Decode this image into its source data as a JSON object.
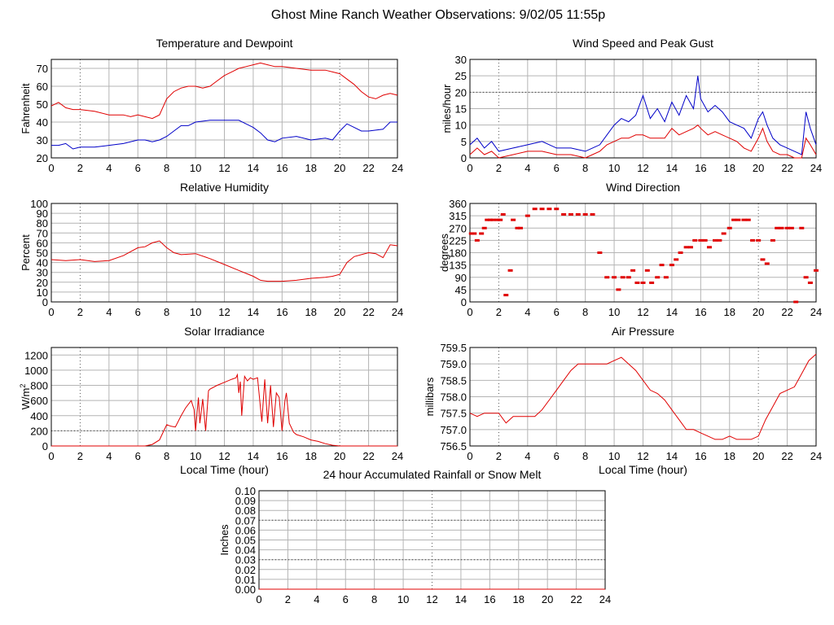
{
  "page": {
    "title": "Ghost Mine Ranch Weather Observations: 9/02/05 11:55p"
  },
  "colors": {
    "red": "#e00000",
    "blue": "#0000c8",
    "grid": "#b4b4b4",
    "axis": "#000000"
  },
  "chart_data": [
    {
      "id": "temp",
      "type": "line",
      "title": "Temperature and Dewpoint",
      "xlabel": "",
      "ylabel": "Fahrenheit",
      "xlim": [
        0,
        24
      ],
      "xticks": [
        0,
        2,
        4,
        6,
        8,
        10,
        12,
        14,
        16,
        18,
        20,
        22,
        24
      ],
      "ylim": [
        20,
        75
      ],
      "yticks": [
        20,
        30,
        40,
        50,
        60,
        70
      ],
      "series": [
        {
          "color": "red",
          "x": [
            0,
            0.5,
            1,
            1.5,
            2,
            3,
            4,
            5,
            5.5,
            6,
            6.5,
            7,
            7.5,
            8,
            8.5,
            9,
            9.5,
            10,
            10.5,
            11,
            11.5,
            12,
            12.5,
            13,
            13.5,
            14,
            14.5,
            15,
            15.5,
            16,
            17,
            18,
            19,
            19.5,
            20,
            20.5,
            21,
            21.5,
            22,
            22.5,
            23,
            23.5,
            24
          ],
          "y": [
            49,
            51,
            48,
            47,
            47,
            46,
            44,
            44,
            43,
            44,
            43,
            42,
            44,
            53,
            57,
            59,
            60,
            60,
            59,
            60,
            63,
            66,
            68,
            70,
            71,
            72,
            73,
            72,
            71,
            71,
            70,
            69,
            69,
            68,
            67,
            64,
            61,
            57,
            54,
            53,
            55,
            56,
            55
          ]
        },
        {
          "color": "blue",
          "x": [
            0,
            0.5,
            1,
            1.5,
            2,
            3,
            4,
            5,
            6,
            6.5,
            7,
            7.5,
            8,
            8.5,
            9,
            9.5,
            10,
            11,
            12,
            13,
            13.5,
            14,
            14.5,
            15,
            15.5,
            16,
            17,
            18,
            19,
            19.5,
            20,
            20.5,
            21,
            21.5,
            22,
            23,
            23.5,
            24
          ],
          "y": [
            27,
            27,
            28,
            25,
            26,
            26,
            27,
            28,
            30,
            30,
            29,
            30,
            32,
            35,
            38,
            38,
            40,
            41,
            41,
            41,
            39,
            37,
            34,
            30,
            29,
            31,
            32,
            30,
            31,
            30,
            35,
            39,
            37,
            35,
            35,
            36,
            40,
            40
          ]
        }
      ]
    },
    {
      "id": "wind",
      "type": "line",
      "title": "Wind Speed and Peak Gust",
      "xlabel": "",
      "ylabel": "miles/hour",
      "xlim": [
        0,
        24
      ],
      "xticks": [
        0,
        2,
        4,
        6,
        8,
        10,
        12,
        14,
        16,
        18,
        20,
        22,
        24
      ],
      "ylim": [
        0,
        30
      ],
      "yticks": [
        0,
        5,
        10,
        15,
        20,
        25,
        30
      ],
      "series": [
        {
          "color": "blue",
          "x": [
            0,
            0.5,
            1,
            1.5,
            2,
            3,
            4,
            5,
            6,
            7,
            8,
            8.5,
            9,
            9.5,
            10,
            10.5,
            11,
            11.5,
            12,
            12.5,
            13,
            13.5,
            14,
            14.5,
            15,
            15.5,
            15.8,
            16,
            16.5,
            17,
            17.5,
            18,
            18.5,
            19,
            19.5,
            20,
            20.3,
            20.6,
            21,
            21.5,
            22,
            22.5,
            23,
            23.3,
            23.6,
            24
          ],
          "y": [
            4,
            6,
            3,
            5,
            2,
            3,
            4,
            5,
            3,
            3,
            2,
            3,
            4,
            7,
            10,
            12,
            11,
            13,
            19,
            12,
            15,
            11,
            17,
            13,
            19,
            15,
            25,
            18,
            14,
            16,
            14,
            11,
            10,
            9,
            6,
            12,
            14,
            10,
            6,
            4,
            3,
            2,
            1,
            14,
            9,
            4
          ]
        },
        {
          "color": "red",
          "x": [
            0,
            0.5,
            1,
            1.5,
            2,
            3,
            4,
            5,
            6,
            7,
            8,
            8.5,
            9,
            9.5,
            10,
            10.5,
            11,
            11.5,
            12,
            12.5,
            13,
            13.5,
            14,
            14.5,
            15,
            15.5,
            15.8,
            16,
            16.5,
            17,
            17.5,
            18,
            18.5,
            19,
            19.5,
            20,
            20.3,
            20.6,
            21,
            21.5,
            22,
            22.5,
            23,
            23.3,
            23.6,
            24
          ],
          "y": [
            1,
            3,
            1,
            2,
            0,
            1,
            2,
            2,
            1,
            1,
            0,
            1,
            2,
            4,
            5,
            6,
            6,
            7,
            7,
            6,
            6,
            6,
            9,
            7,
            8,
            9,
            10,
            9,
            7,
            8,
            7,
            6,
            5,
            3,
            2,
            6,
            9,
            5,
            2,
            1,
            1,
            0,
            0,
            6,
            4,
            1
          ]
        }
      ]
    },
    {
      "id": "rh",
      "type": "line",
      "title": "Relative Humidity",
      "xlabel": "",
      "ylabel": "Percent",
      "xlim": [
        0,
        24
      ],
      "xticks": [
        0,
        2,
        4,
        6,
        8,
        10,
        12,
        14,
        16,
        18,
        20,
        22,
        24
      ],
      "ylim": [
        0,
        100
      ],
      "yticks": [
        0,
        10,
        20,
        30,
        40,
        50,
        60,
        70,
        80,
        90,
        100
      ],
      "series": [
        {
          "color": "red",
          "x": [
            0,
            1,
            2,
            3,
            4,
            5,
            6,
            6.5,
            7,
            7.5,
            8,
            8.5,
            9,
            10,
            11,
            12,
            13,
            14,
            14.5,
            15,
            16,
            17,
            18,
            19,
            19.5,
            20,
            20.5,
            21,
            21.5,
            22,
            22.5,
            23,
            23.5,
            24
          ],
          "y": [
            43,
            42,
            43,
            41,
            42,
            47,
            55,
            56,
            60,
            62,
            55,
            50,
            48,
            49,
            44,
            38,
            32,
            26,
            22,
            21,
            21,
            22,
            24,
            25,
            26,
            28,
            40,
            46,
            48,
            50,
            49,
            45,
            58,
            57
          ]
        }
      ]
    },
    {
      "id": "wdir",
      "type": "scatter",
      "title": "Wind Direction",
      "xlabel": "",
      "ylabel": "degrees",
      "xlim": [
        0,
        24
      ],
      "xticks": [
        0,
        2,
        4,
        6,
        8,
        10,
        12,
        14,
        16,
        18,
        20,
        22,
        24
      ],
      "ylim": [
        0,
        360
      ],
      "yticks": [
        0,
        45,
        90,
        135,
        180,
        225,
        270,
        315,
        360
      ],
      "series": [
        {
          "color": "red",
          "x": [
            0.1,
            0.3,
            0.5,
            0.8,
            1.0,
            1.2,
            1.4,
            1.6,
            1.9,
            2.1,
            2.3,
            2.5,
            2.8,
            3.0,
            3.3,
            3.5,
            4.0,
            4.5,
            5.0,
            5.5,
            6.0,
            6.5,
            7.0,
            7.5,
            8.0,
            8.5,
            9.0,
            9.5,
            10.0,
            10.3,
            10.6,
            11.0,
            11.3,
            11.6,
            12.0,
            12.3,
            12.6,
            13.0,
            13.3,
            13.6,
            14.0,
            14.3,
            14.6,
            15.0,
            15.3,
            15.6,
            16.0,
            16.3,
            16.6,
            17.0,
            17.3,
            17.6,
            18.0,
            18.3,
            18.6,
            19.0,
            19.3,
            19.6,
            20.0,
            20.3,
            20.6,
            21.0,
            21.3,
            21.6,
            22.0,
            22.3,
            22.6,
            23.0,
            23.3,
            23.6,
            24.0
          ],
          "y": [
            250,
            250,
            225,
            250,
            270,
            300,
            300,
            300,
            300,
            300,
            320,
            25,
            115,
            300,
            270,
            270,
            315,
            340,
            340,
            340,
            340,
            320,
            320,
            320,
            320,
            320,
            180,
            90,
            90,
            45,
            90,
            90,
            115,
            70,
            70,
            115,
            70,
            90,
            135,
            90,
            135,
            155,
            180,
            200,
            200,
            225,
            225,
            225,
            200,
            225,
            225,
            250,
            270,
            300,
            300,
            300,
            300,
            225,
            225,
            155,
            140,
            225,
            270,
            270,
            270,
            270,
            0,
            270,
            90,
            70,
            115
          ]
        }
      ]
    },
    {
      "id": "solar",
      "type": "line",
      "title": "Solar Irradiance",
      "xlabel": "Local Time (hour)",
      "ylabel": "W/m",
      "ylabel_sup": "2",
      "xlim": [
        0,
        24
      ],
      "xticks": [
        0,
        2,
        4,
        6,
        8,
        10,
        12,
        14,
        16,
        18,
        20,
        22,
        24
      ],
      "ylim": [
        0,
        1300
      ],
      "yticks": [
        0,
        200,
        400,
        600,
        800,
        1000,
        1200
      ],
      "series": [
        {
          "color": "red",
          "x": [
            0,
            6.5,
            7,
            7.5,
            7.8,
            8,
            8.3,
            8.6,
            9,
            9.3,
            9.7,
            9.9,
            10,
            10.2,
            10.3,
            10.5,
            10.7,
            10.9,
            11,
            11.5,
            12,
            12.5,
            12.8,
            12.9,
            13,
            13.1,
            13.2,
            13.4,
            13.6,
            13.8,
            14,
            14.3,
            14.6,
            14.8,
            15,
            15.2,
            15.4,
            15.6,
            15.8,
            16,
            16.2,
            16.3,
            16.5,
            16.8,
            17,
            17.5,
            18,
            18.5,
            19,
            19.5,
            20,
            21,
            24
          ],
          "y": [
            0,
            0,
            20,
            80,
            200,
            280,
            260,
            250,
            400,
            500,
            600,
            480,
            200,
            640,
            300,
            620,
            200,
            730,
            750,
            800,
            840,
            880,
            900,
            940,
            700,
            850,
            400,
            920,
            860,
            900,
            880,
            900,
            320,
            880,
            300,
            800,
            250,
            700,
            640,
            200,
            600,
            700,
            300,
            180,
            150,
            120,
            80,
            60,
            30,
            10,
            0,
            0,
            0
          ]
        }
      ]
    },
    {
      "id": "press",
      "type": "line",
      "title": "Air Pressure",
      "xlabel": "Local Time (hour)",
      "ylabel": "millibars",
      "xlim": [
        0,
        24
      ],
      "xticks": [
        0,
        2,
        4,
        6,
        8,
        10,
        12,
        14,
        16,
        18,
        20,
        22,
        24
      ],
      "ylim": [
        756.5,
        759.5
      ],
      "yticks": [
        756.5,
        757.0,
        757.5,
        758.0,
        758.5,
        759.0,
        759.5
      ],
      "series": [
        {
          "color": "red",
          "x": [
            0,
            0.5,
            1,
            1.5,
            2,
            2.5,
            3,
            3.5,
            4,
            4.5,
            5,
            5.5,
            6,
            6.5,
            7,
            7.5,
            8,
            8.5,
            9,
            9.5,
            10,
            10.5,
            11,
            11.5,
            12,
            12.5,
            13,
            13.5,
            14,
            14.5,
            15,
            15.5,
            16,
            16.5,
            17,
            17.5,
            18,
            18.5,
            19,
            19.5,
            20,
            20.5,
            21,
            21.5,
            22,
            22.5,
            23,
            23.5,
            24
          ],
          "y": [
            757.5,
            757.4,
            757.5,
            757.5,
            757.5,
            757.2,
            757.4,
            757.4,
            757.4,
            757.4,
            757.6,
            757.9,
            758.2,
            758.5,
            758.8,
            759.0,
            759.0,
            759.0,
            759.0,
            759.0,
            759.1,
            759.2,
            759.0,
            758.8,
            758.5,
            758.2,
            758.1,
            757.9,
            757.6,
            757.3,
            757.0,
            757.0,
            756.9,
            756.8,
            756.7,
            756.7,
            756.8,
            756.7,
            756.7,
            756.7,
            756.8,
            757.3,
            757.7,
            758.1,
            758.2,
            758.3,
            758.7,
            759.1,
            759.3
          ]
        }
      ]
    },
    {
      "id": "rain",
      "type": "line",
      "title": "24 hour Accumulated Rainfall or Snow Melt",
      "xlabel": "",
      "ylabel": "Inches",
      "xlim": [
        0,
        24
      ],
      "xticks": [
        0,
        2,
        4,
        6,
        8,
        10,
        12,
        14,
        16,
        18,
        20,
        22,
        24
      ],
      "ylim": [
        0,
        0.1
      ],
      "yticks": [
        0.0,
        0.01,
        0.02,
        0.03,
        0.04,
        0.05,
        0.06,
        0.07,
        0.08,
        0.09,
        0.1
      ],
      "series": [
        {
          "color": "red",
          "x": [
            0,
            24
          ],
          "y": [
            0,
            0
          ]
        }
      ]
    }
  ]
}
